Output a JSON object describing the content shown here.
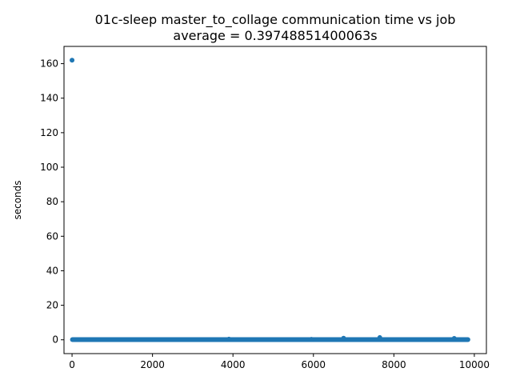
{
  "chart_data": {
    "type": "scatter",
    "title": "01c-sleep master_to_collage communication time vs job",
    "subtitle": "average = 0.39748851400063s",
    "xlabel": "",
    "ylabel": "seconds",
    "xlim": [
      -200,
      10300
    ],
    "ylim": [
      -8,
      170
    ],
    "xticks": [
      0,
      2000,
      4000,
      6000,
      8000,
      10000
    ],
    "xtick_labels": [
      "0",
      "2000",
      "4000",
      "6000",
      "8000",
      "10000"
    ],
    "yticks": [
      0,
      20,
      40,
      60,
      80,
      100,
      120,
      140,
      160
    ],
    "ytick_labels": [
      "0",
      "20",
      "40",
      "60",
      "80",
      "100",
      "120",
      "140",
      "160"
    ],
    "grid": false,
    "color": "#1f77b4",
    "baseline": {
      "x_start": 0,
      "x_end": 9850,
      "y": 0.1
    },
    "points": [
      {
        "x": 0,
        "y": 162
      },
      {
        "x": 3900,
        "y": 0.4
      },
      {
        "x": 5950,
        "y": 0.3
      },
      {
        "x": 6750,
        "y": 0.9
      },
      {
        "x": 7650,
        "y": 1.3
      },
      {
        "x": 9500,
        "y": 0.8
      }
    ]
  }
}
